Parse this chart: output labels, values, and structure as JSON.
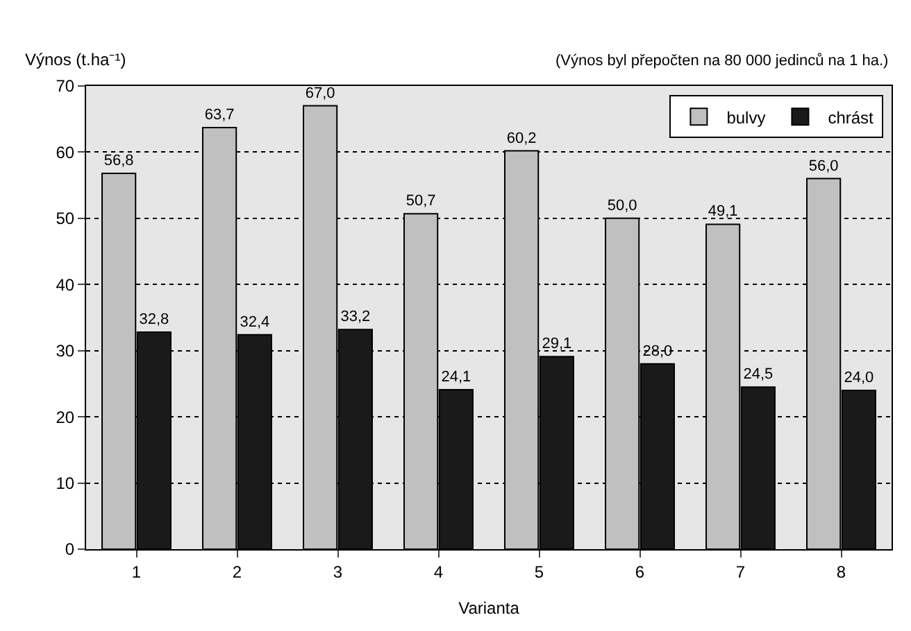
{
  "chart_data": {
    "type": "bar",
    "xlabel": "Varianta",
    "ylabel": "Výnos (t.ha⁻¹)",
    "annotations": [
      "(Výnos byl přepočten na 80 000 jedinců na 1 ha.)"
    ],
    "categories": [
      "1",
      "2",
      "3",
      "4",
      "5",
      "6",
      "7",
      "8"
    ],
    "series": [
      {
        "name": "bulvy",
        "color": "#c0c0c0",
        "values": [
          56.8,
          63.7,
          67.0,
          50.7,
          60.2,
          50.0,
          49.1,
          56.0
        ],
        "value_labels": [
          "56,8",
          "63,7",
          "67,0",
          "50,7",
          "60,2",
          "50,0",
          "49,1",
          "56,0"
        ]
      },
      {
        "name": "chrást",
        "color": "#1a1a1a",
        "values": [
          32.8,
          32.4,
          33.2,
          24.1,
          29.1,
          28.0,
          24.5,
          24.0
        ],
        "value_labels": [
          "32,8",
          "32,4",
          "33,2",
          "24,1",
          "29,1",
          "28,0",
          "24,5",
          "24,0"
        ]
      }
    ],
    "ylim": [
      0,
      70
    ],
    "yticks": [
      0,
      10,
      20,
      30,
      40,
      50,
      60,
      70
    ],
    "grid": "y",
    "legend": "top right"
  }
}
